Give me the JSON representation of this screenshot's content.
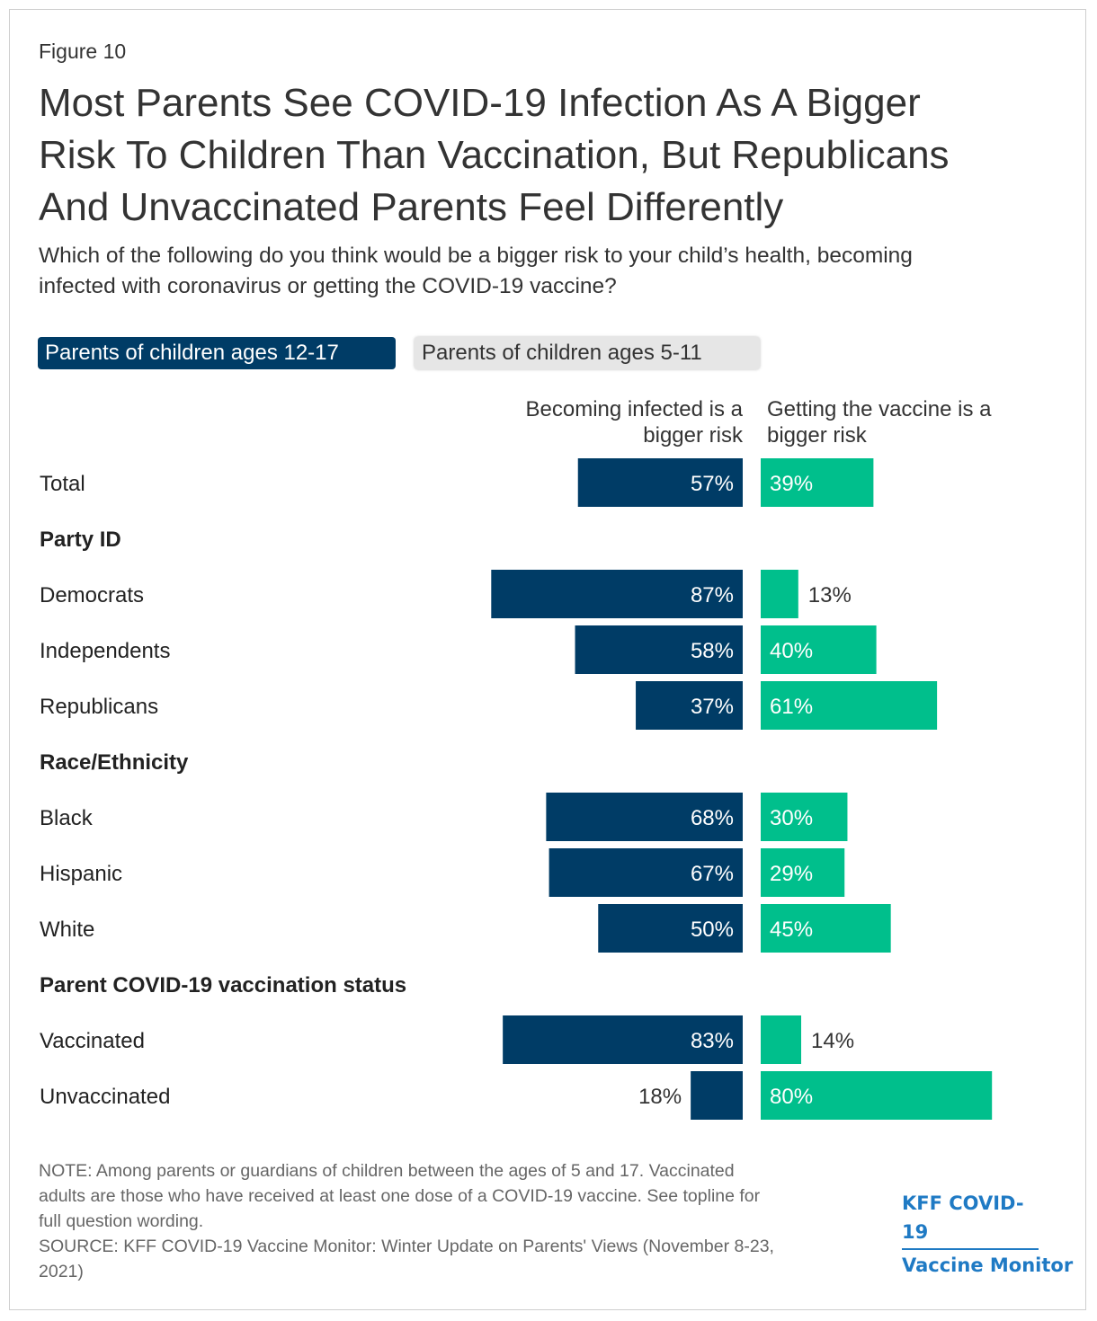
{
  "figure_label": "Figure 10",
  "title_lines": [
    "Most Parents See COVID-19 Infection As A Bigger",
    "Risk To Children Than Vaccination, But Republicans",
    "And Unvaccinated Parents Feel Differently"
  ],
  "subtitle_lines": [
    "Which of the following do you think would be a bigger risk to your child’s health, becoming",
    "infected with coronavirus or getting the COVID-19 vaccine?"
  ],
  "tabs": [
    {
      "label": "Parents of children ages 12-17",
      "active": true
    },
    {
      "label": "Parents of children ages 5-11",
      "active": false
    }
  ],
  "colors": {
    "infected": "#003c66",
    "vaccine": "#00bf8c",
    "text": "#333333",
    "label_inside": "#ffffff"
  },
  "chart_data": {
    "type": "bar",
    "orientation": "horizontal-diverging",
    "series": [
      {
        "name_lines": [
          "Becoming infected is a",
          "bigger risk"
        ],
        "key": "infected"
      },
      {
        "name_lines": [
          "Getting the vaccine is a",
          "bigger risk"
        ],
        "key": "vaccine"
      }
    ],
    "rows": [
      {
        "kind": "row",
        "label": "Total",
        "infected": 57,
        "vaccine": 39
      },
      {
        "kind": "header",
        "label": "Party ID"
      },
      {
        "kind": "row",
        "label": "Democrats",
        "infected": 87,
        "vaccine": 13
      },
      {
        "kind": "row",
        "label": "Independents",
        "infected": 58,
        "vaccine": 40
      },
      {
        "kind": "row",
        "label": "Republicans",
        "infected": 37,
        "vaccine": 61
      },
      {
        "kind": "header",
        "label": "Race/Ethnicity"
      },
      {
        "kind": "row",
        "label": "Black",
        "infected": 68,
        "vaccine": 30
      },
      {
        "kind": "row",
        "label": "Hispanic",
        "infected": 67,
        "vaccine": 29
      },
      {
        "kind": "row",
        "label": "White",
        "infected": 50,
        "vaccine": 45
      },
      {
        "kind": "header",
        "label": "Parent COVID-19 vaccination status"
      },
      {
        "kind": "row",
        "label": "Vaccinated",
        "infected": 83,
        "vaccine": 14
      },
      {
        "kind": "row",
        "label": "Unvaccinated",
        "infected": 18,
        "vaccine": 80
      }
    ],
    "value_suffix": "%"
  },
  "note_lines": [
    "NOTE: Among parents or guardians of children between the ages of 5 and 17. Vaccinated",
    "adults are those who have received at least one dose of a COVID-19 vaccine. See topline for",
    "full question wording.",
    "SOURCE: KFF COVID-19 Vaccine Monitor: Winter Update on Parents' Views (November 8-23,",
    "2021)"
  ],
  "logo_lines": [
    "KFF COVID-19",
    "Vaccine Monitor"
  ]
}
